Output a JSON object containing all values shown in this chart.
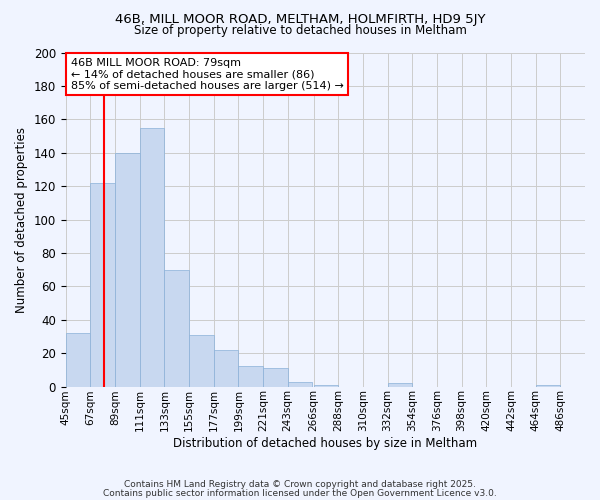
{
  "title1": "46B, MILL MOOR ROAD, MELTHAM, HOLMFIRTH, HD9 5JY",
  "title2": "Size of property relative to detached houses in Meltham",
  "xlabel": "Distribution of detached houses by size in Meltham",
  "ylabel": "Number of detached properties",
  "bin_labels": [
    "45sqm",
    "67sqm",
    "89sqm",
    "111sqm",
    "133sqm",
    "155sqm",
    "177sqm",
    "199sqm",
    "221sqm",
    "243sqm",
    "266sqm",
    "288sqm",
    "310sqm",
    "332sqm",
    "354sqm",
    "376sqm",
    "398sqm",
    "420sqm",
    "442sqm",
    "464sqm",
    "486sqm"
  ],
  "bin_edges": [
    45,
    67,
    89,
    111,
    133,
    155,
    177,
    199,
    221,
    243,
    266,
    288,
    310,
    332,
    354,
    376,
    398,
    420,
    442,
    464,
    486,
    508
  ],
  "counts": [
    32,
    122,
    140,
    155,
    70,
    31,
    22,
    12,
    11,
    3,
    1,
    0,
    0,
    2,
    0,
    0,
    0,
    0,
    0,
    1,
    0
  ],
  "bar_color": "#c8d8f0",
  "bar_edge_color": "#8ab0d8",
  "grid_color": "#cccccc",
  "bg_color": "#f0f4ff",
  "vline_x": 79,
  "vline_color": "red",
  "annotation_line1": "46B MILL MOOR ROAD: 79sqm",
  "annotation_line2": "← 14% of detached houses are smaller (86)",
  "annotation_line3": "85% of semi-detached houses are larger (514) →",
  "annotation_box_color": "white",
  "annotation_box_edge": "red",
  "ylim": [
    0,
    200
  ],
  "yticks": [
    0,
    20,
    40,
    60,
    80,
    100,
    120,
    140,
    160,
    180,
    200
  ],
  "footer1": "Contains HM Land Registry data © Crown copyright and database right 2025.",
  "footer2": "Contains public sector information licensed under the Open Government Licence v3.0."
}
